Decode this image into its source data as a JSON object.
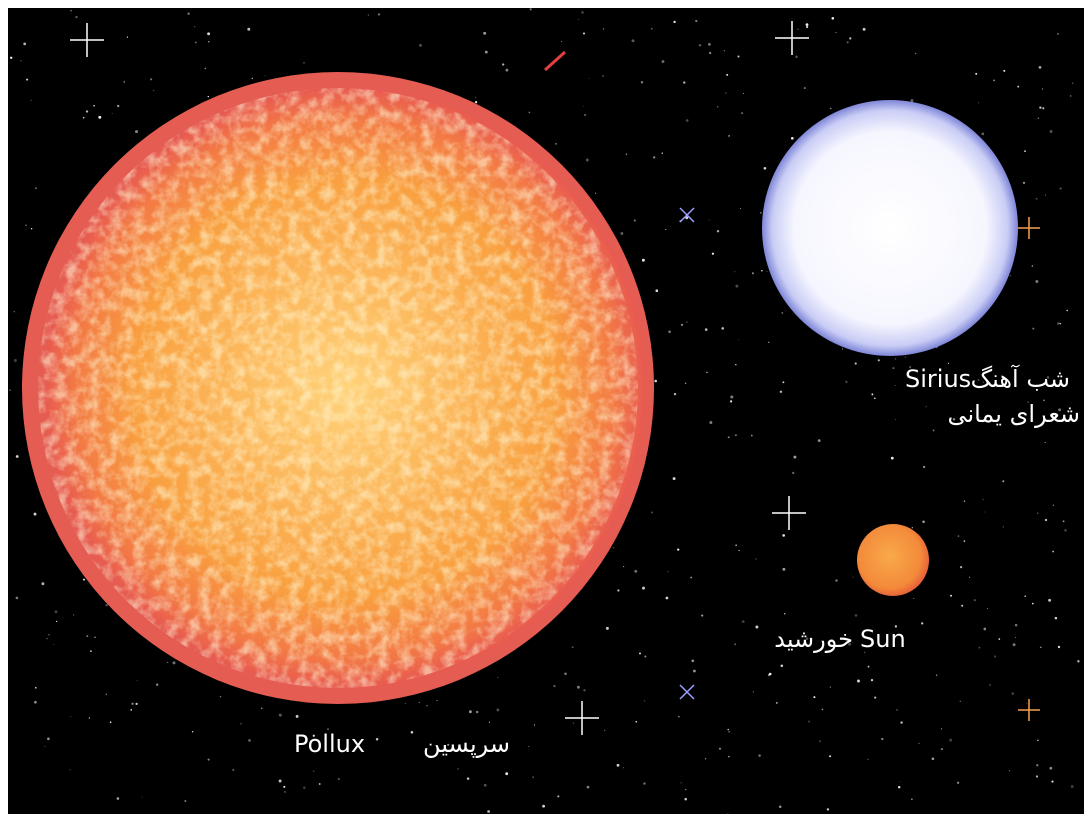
{
  "stars": [
    {
      "name": "Pollux",
      "local_name": "سرپسین"
    },
    {
      "name": "Sirius",
      "local_name": "شب آهنگ",
      "alt_name": "شعرای یمانی"
    },
    {
      "name": "Sun",
      "local_name": "خورشید"
    }
  ]
}
